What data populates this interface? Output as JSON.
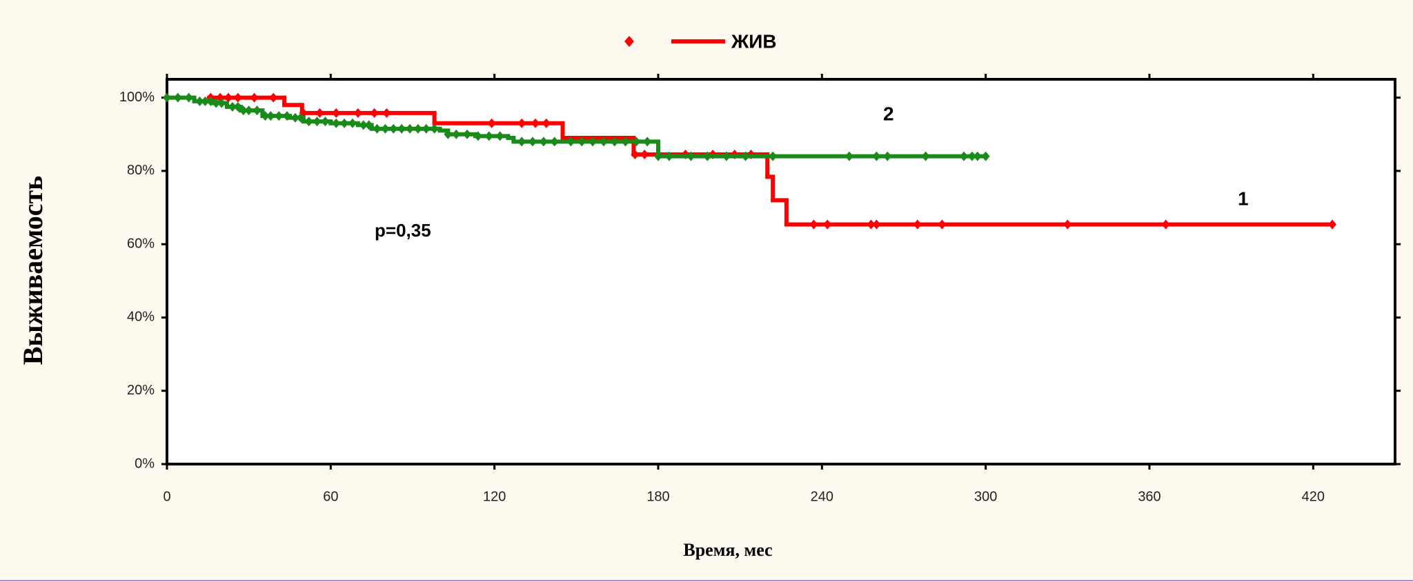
{
  "chart_data": {
    "type": "km",
    "legend": {
      "label": "ЖИВ",
      "color": "#ff0000"
    },
    "x_label": "Время, мес",
    "y_label": "Выживаемость",
    "annotation": "p=0,35",
    "xlim": [
      0,
      450
    ],
    "xticks": [
      0,
      60,
      120,
      180,
      240,
      300,
      360,
      420
    ],
    "ylim": [
      0,
      105
    ],
    "yticks": [
      {
        "value": 0,
        "label": "0%"
      },
      {
        "value": 20,
        "label": "20%"
      },
      {
        "value": 40,
        "label": "40%"
      },
      {
        "value": 60,
        "label": "60%"
      },
      {
        "value": 80,
        "label": "80%"
      },
      {
        "value": 100,
        "label": "100%"
      }
    ],
    "series": [
      {
        "name": "1",
        "color": "#ff0000",
        "x": [
          15.5,
          43,
          49.5,
          98,
          145,
          171,
          220,
          222,
          227,
          427
        ],
        "values": [
          100,
          98,
          95.8,
          93,
          89,
          84.5,
          78.4,
          72,
          65.4,
          65.4
        ],
        "censored": [
          16,
          19.5,
          22.5,
          26,
          32,
          39,
          50,
          56,
          62,
          70,
          76,
          80.5,
          119,
          130,
          135,
          139,
          171.5,
          175,
          190,
          200,
          208,
          214,
          237,
          242,
          258,
          260,
          275,
          284,
          330,
          366,
          427
        ]
      },
      {
        "name": "2",
        "color": "#1a8a1a",
        "x": [
          0,
          10,
          17,
          22,
          27,
          35,
          45,
          50,
          60,
          70,
          75,
          100,
          103,
          113,
          125,
          127,
          180,
          300
        ],
        "values": [
          100,
          99,
          98.5,
          97.5,
          96.5,
          95,
          94.5,
          93.5,
          93,
          92.5,
          91.5,
          91,
          90,
          89.5,
          89,
          88,
          84,
          84
        ],
        "censored": [
          0,
          4,
          8,
          12,
          14,
          16,
          18,
          20,
          24,
          26,
          28,
          30,
          33,
          36,
          38,
          41,
          44,
          47,
          49,
          52,
          55,
          58,
          62,
          65,
          68,
          72,
          74,
          77,
          80,
          83,
          86,
          89,
          92,
          95,
          98,
          103,
          106,
          110,
          114,
          118,
          122,
          130,
          134,
          138,
          142,
          148,
          152,
          156,
          160,
          164,
          168,
          172,
          176,
          180,
          184,
          192,
          198,
          205,
          212,
          222,
          250,
          260,
          264,
          278,
          292,
          295,
          297,
          300
        ]
      }
    ]
  }
}
